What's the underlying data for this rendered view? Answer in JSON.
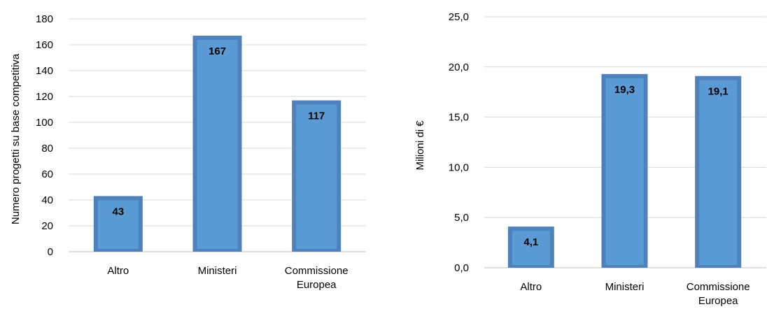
{
  "chart_data": [
    {
      "type": "bar",
      "ylabel": "Numero progetti su base competitiva",
      "ylim": [
        0,
        180
      ],
      "yticks": [
        "0",
        "20",
        "40",
        "60",
        "80",
        "100",
        "120",
        "140",
        "160",
        "180"
      ],
      "categories": [
        [
          "Altro"
        ],
        [
          "Ministeri"
        ],
        [
          "Commissione",
          "Europea"
        ]
      ],
      "values": [
        43,
        167,
        117
      ],
      "data_labels": [
        "43",
        "167",
        "117"
      ],
      "grid": true,
      "bar_color": "#5b9bd5",
      "bar_edge_color": "#4f81bd"
    },
    {
      "type": "bar",
      "ylabel": "Milioni di €",
      "ylim": [
        0,
        25
      ],
      "yticks": [
        "0,0",
        "5,0",
        "10,0",
        "15,0",
        "20,0",
        "25,0"
      ],
      "categories": [
        [
          "Altro"
        ],
        [
          "Ministeri"
        ],
        [
          "Commissione",
          "Europea"
        ]
      ],
      "values": [
        4.1,
        19.3,
        19.1
      ],
      "data_labels": [
        "4,1",
        "19,3",
        "19,1"
      ],
      "grid": true,
      "bar_color": "#5b9bd5",
      "bar_edge_color": "#4f81bd"
    }
  ]
}
